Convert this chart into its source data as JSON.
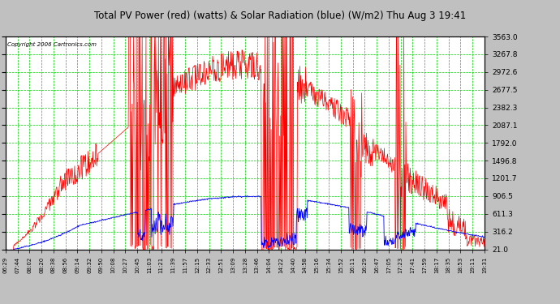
{
  "title": "Total PV Power (red) (watts) & Solar Radiation (blue) (W/m2) Thu Aug 3 19:41",
  "copyright": "Copyright 2006 Cartronics.com",
  "plot_bg_color": "#ffffff",
  "fig_bg_color": "#c0c0c0",
  "grid_color": "#00cc00",
  "border_color": "#000000",
  "ytick_values": [
    21.0,
    316.2,
    611.3,
    906.5,
    1201.7,
    1496.8,
    1792.0,
    2087.1,
    2382.3,
    2677.5,
    2972.6,
    3267.8,
    3563.0
  ],
  "ymin": 21.0,
  "ymax": 3563.0,
  "xtick_labels": [
    "06:29",
    "07:44",
    "08:02",
    "08:20",
    "08:38",
    "08:56",
    "09:14",
    "09:32",
    "09:50",
    "10:08",
    "10:27",
    "10:45",
    "11:03",
    "11:21",
    "11:39",
    "11:57",
    "12:15",
    "12:33",
    "12:51",
    "13:09",
    "13:28",
    "13:46",
    "14:04",
    "14:22",
    "14:40",
    "14:58",
    "15:16",
    "15:34",
    "15:52",
    "16:11",
    "16:29",
    "16:47",
    "17:05",
    "17:23",
    "17:41",
    "17:59",
    "18:17",
    "18:35",
    "18:53",
    "19:11",
    "19:31"
  ],
  "line_red_color": "#ff0000",
  "line_blue_color": "#0000ff",
  "title_color": "#000000",
  "copyright_color": "#000000",
  "tick_label_color": "#000000",
  "red_seed": 7,
  "blue_seed": 3
}
